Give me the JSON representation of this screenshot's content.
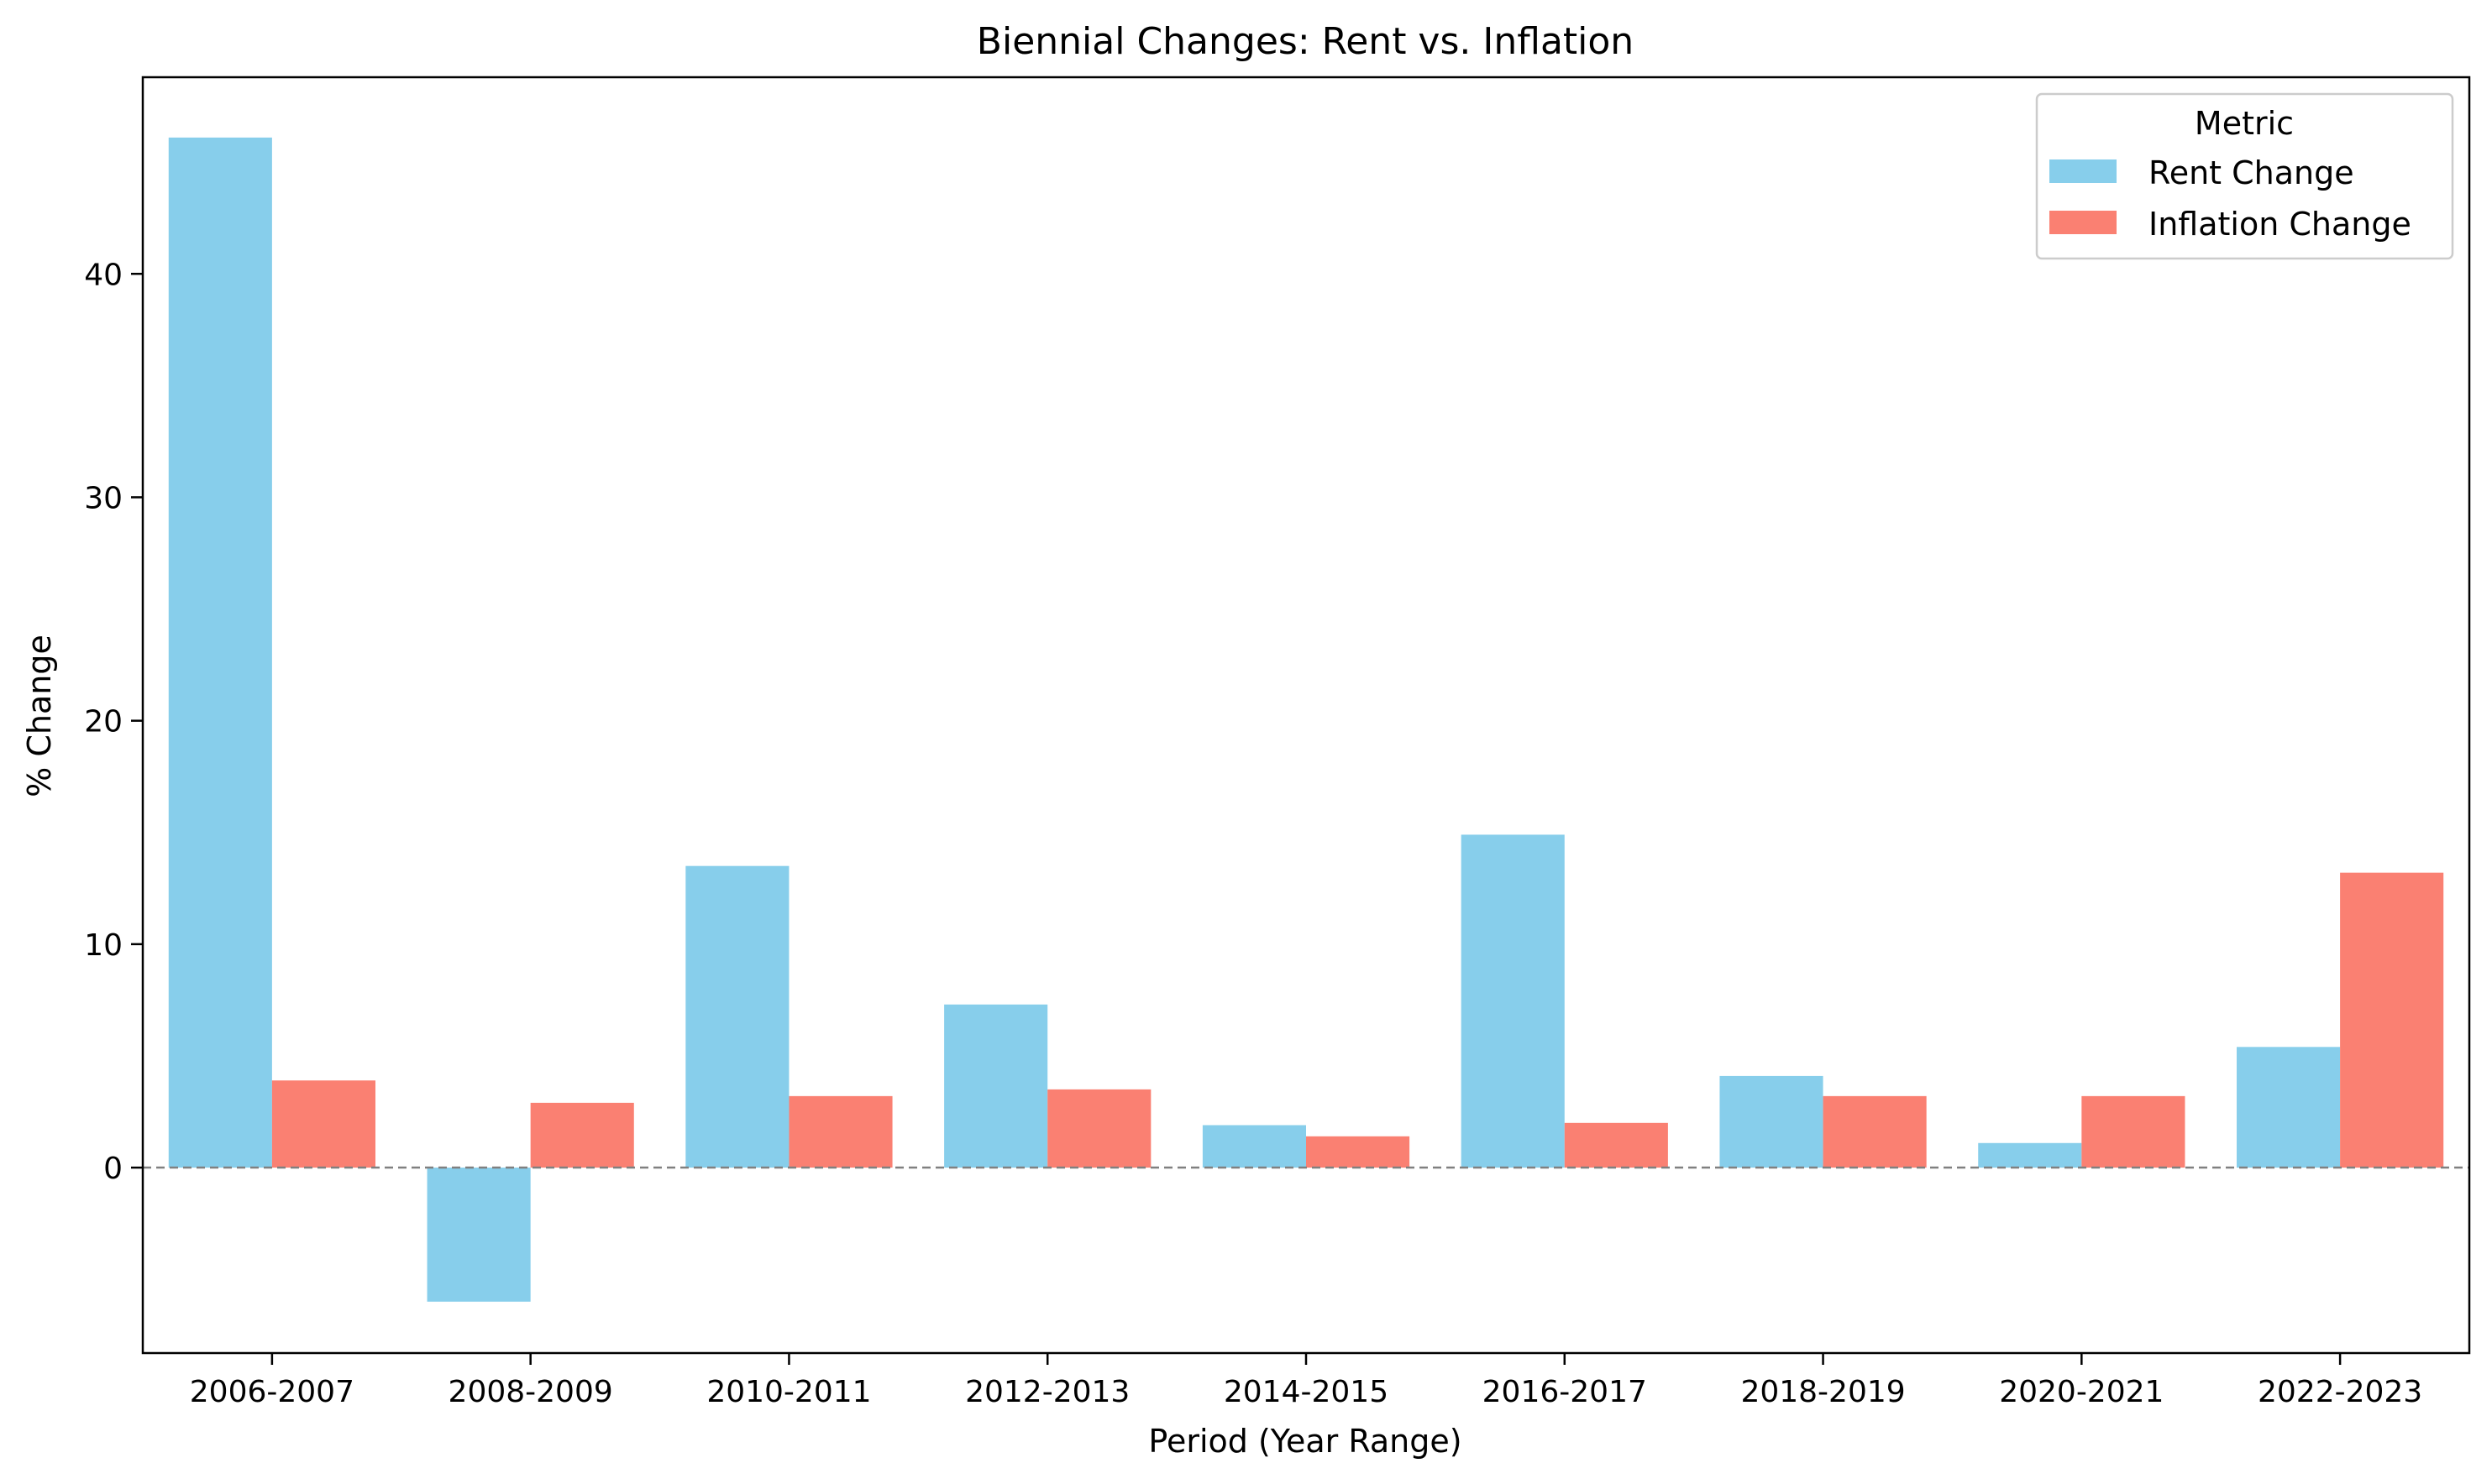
{
  "chart_data": {
    "type": "bar",
    "title": "Biennial Changes: Rent vs. Inflation",
    "xlabel": "Period (Year Range)",
    "ylabel": "% Change",
    "categories": [
      "2006-2007",
      "2008-2009",
      "2010-2011",
      "2012-2013",
      "2014-2015",
      "2016-2017",
      "2018-2019",
      "2020-2021",
      "2022-2023"
    ],
    "series": [
      {
        "name": "Rent Change",
        "color": "#87CEEB",
        "values": [
          46.1,
          -6.0,
          13.5,
          7.3,
          1.9,
          14.9,
          4.1,
          1.1,
          5.4
        ]
      },
      {
        "name": "Inflation Change",
        "color": "#FA8072",
        "values": [
          3.9,
          2.9,
          3.2,
          3.5,
          1.4,
          2.0,
          3.2,
          3.2,
          13.2
        ]
      }
    ],
    "ylim": [
      -8.3,
      48.8
    ],
    "yticks": [
      0,
      10,
      20,
      30,
      40
    ],
    "zero_line": true,
    "grid": false,
    "legend": {
      "title": "Metric",
      "placement": "top-right"
    }
  }
}
